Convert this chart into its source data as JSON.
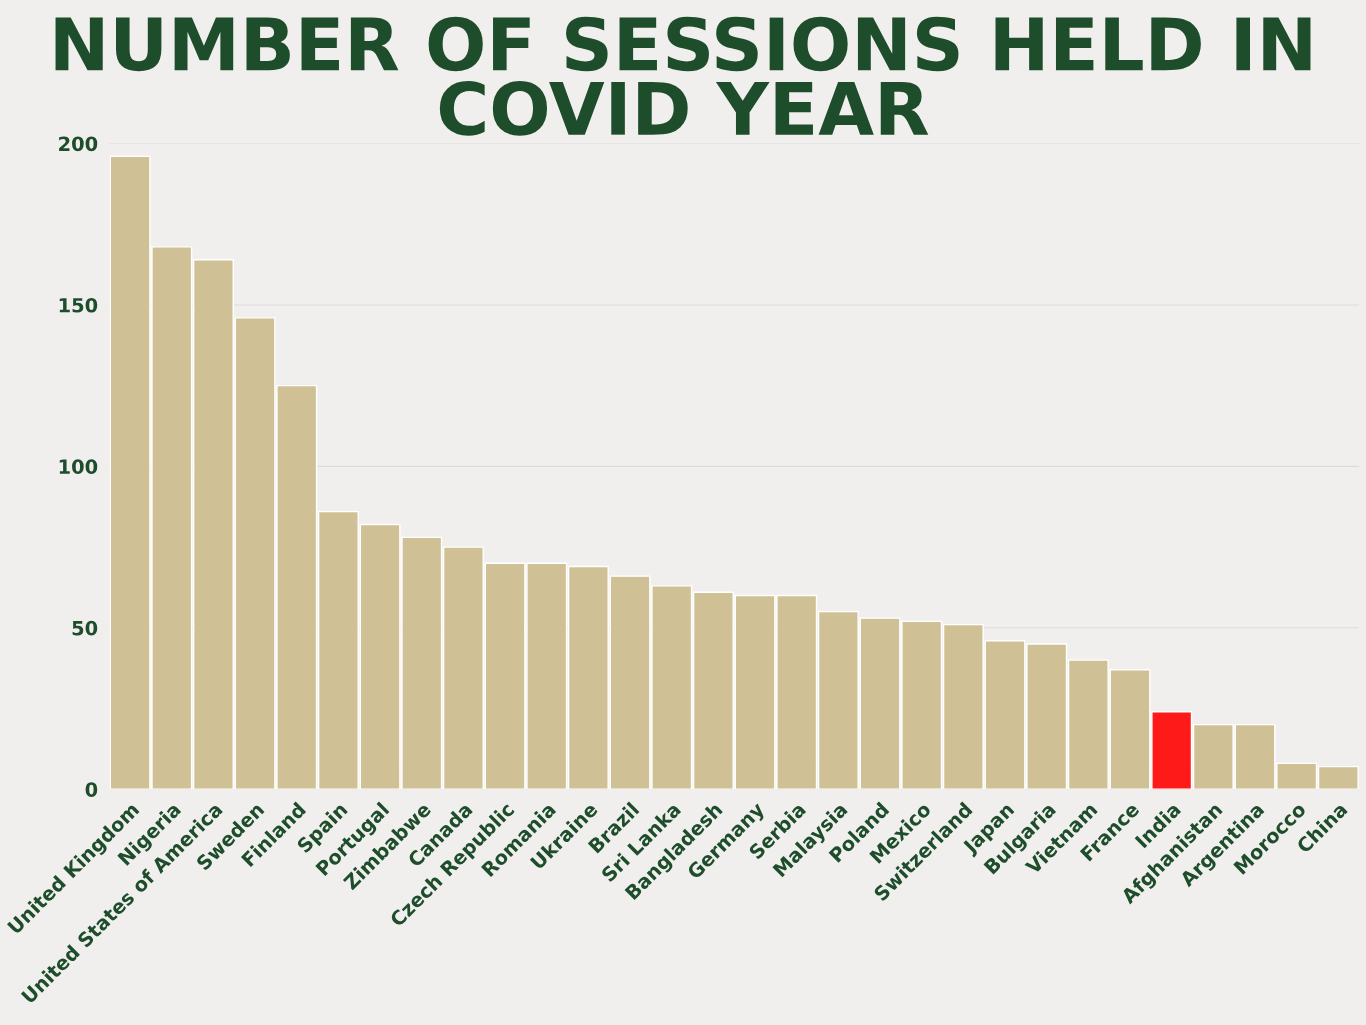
{
  "chart_data": {
    "type": "bar",
    "title": "NUMBER OF SESSIONS HELD IN\nCOVID YEAR",
    "categories": [
      "United Kingdom",
      "Nigeria",
      "United States of America",
      "Sweden",
      "Finland",
      "Spain",
      "Portugal",
      "Zimbabwe",
      "Canada",
      "Czech Republic",
      "Romania",
      "Ukraine",
      "Brazil",
      "Sri Lanka",
      "Bangladesh",
      "Germany",
      "Serbia",
      "Malaysia",
      "Poland",
      "Mexico",
      "Switzerland",
      "Japan",
      "Bulgaria",
      "Vietnam",
      "France",
      "India",
      "Afghanistan",
      "Argentina",
      "Morocco",
      "China"
    ],
    "values": [
      196,
      168,
      164,
      146,
      125,
      86,
      82,
      78,
      75,
      70,
      70,
      69,
      66,
      63,
      61,
      60,
      60,
      55,
      53,
      52,
      51,
      46,
      45,
      40,
      37,
      24,
      20,
      20,
      8,
      7
    ],
    "colors": [
      "#cfc096",
      "#cfc096",
      "#cfc096",
      "#cfc096",
      "#cfc096",
      "#cfc096",
      "#cfc096",
      "#cfc096",
      "#cfc096",
      "#cfc096",
      "#cfc096",
      "#cfc096",
      "#cfc096",
      "#cfc096",
      "#cfc096",
      "#cfc096",
      "#cfc096",
      "#cfc096",
      "#cfc096",
      "#cfc096",
      "#cfc096",
      "#cfc096",
      "#cfc096",
      "#cfc096",
      "#cfc096",
      "#ff1a1a",
      "#cfc096",
      "#cfc096",
      "#cfc096",
      "#cfc096"
    ],
    "ylim": [
      0,
      200
    ],
    "yticks": [
      0,
      50,
      100,
      150,
      200
    ],
    "grid": "y"
  }
}
